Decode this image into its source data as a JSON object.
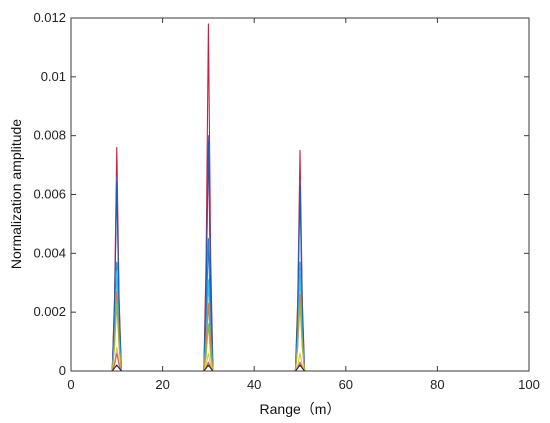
{
  "chart_data": {
    "type": "line",
    "title": "",
    "xlabel": "Range（m）",
    "ylabel": "Normalization amplitude",
    "xlim": [
      0,
      100
    ],
    "ylim": [
      0,
      0.012
    ],
    "xticks": [
      0,
      20,
      40,
      60,
      80,
      100
    ],
    "yticks": [
      0,
      0.002,
      0.004,
      0.006,
      0.008,
      0.01,
      0.012
    ],
    "grid": false,
    "legend": "none",
    "x": [
      0,
      8.5,
      9.0,
      9.5,
      10.0,
      10.5,
      11.0,
      11.5,
      28.5,
      29.0,
      29.5,
      30.0,
      30.5,
      31.0,
      31.5,
      48.5,
      49.0,
      49.5,
      50.0,
      50.5,
      51.0,
      51.5,
      100
    ],
    "series": [
      {
        "color": "#c7203f",
        "values": [
          0,
          0,
          0,
          0.0025,
          0.0076,
          0.0025,
          0,
          0,
          0,
          0,
          0.0038,
          0.0118,
          0.0038,
          0,
          0,
          0,
          0,
          0.0024,
          0.0075,
          0.0024,
          0,
          0,
          0
        ]
      },
      {
        "color": "#7a5aa8",
        "values": [
          0,
          0,
          0,
          0.0022,
          0.0066,
          0.0022,
          0,
          0,
          0,
          0,
          0.0027,
          0.008,
          0.0027,
          0,
          0,
          0,
          0,
          0.0021,
          0.0065,
          0.0021,
          0,
          0,
          0
        ]
      },
      {
        "color": "#1a5fb4",
        "values": [
          0,
          0,
          0,
          0.0021,
          0.0064,
          0.0021,
          0,
          0,
          0,
          0,
          0.0026,
          0.0078,
          0.0026,
          0,
          0,
          0,
          0,
          0.002,
          0.0063,
          0.002,
          0,
          0,
          0
        ]
      },
      {
        "color": "#2b7fc4",
        "values": [
          0,
          0,
          0,
          0.0012,
          0.0037,
          0.0012,
          0,
          0,
          0,
          0,
          0.0015,
          0.0045,
          0.0015,
          0,
          0,
          0,
          0,
          0.0012,
          0.0037,
          0.0012,
          0,
          0,
          0
        ]
      },
      {
        "color": "#3cc0e8",
        "values": [
          0,
          0,
          0,
          0.0011,
          0.0034,
          0.0011,
          0,
          0,
          0,
          0,
          0.001,
          0.0031,
          0.001,
          0,
          0,
          0,
          0,
          0.0011,
          0.0034,
          0.0011,
          0,
          0,
          0
        ]
      },
      {
        "color": "#e0802a",
        "values": [
          0,
          0,
          0,
          0.0009,
          0.0027,
          0.0009,
          0,
          0,
          0,
          0,
          0.0008,
          0.0023,
          0.0008,
          0,
          0,
          0,
          0,
          0.0009,
          0.0026,
          0.0009,
          0,
          0,
          0
        ]
      },
      {
        "color": "#9ab83a",
        "values": [
          0,
          0,
          0,
          0.0008,
          0.0023,
          0.0008,
          0,
          0,
          0,
          0,
          0.0005,
          0.0016,
          0.0005,
          0,
          0,
          0,
          0,
          0.0008,
          0.0023,
          0.0008,
          0,
          0,
          0
        ]
      },
      {
        "color": "#e8c23a",
        "values": [
          0,
          0,
          0,
          0.0003,
          0.0008,
          0.0003,
          0,
          0,
          0,
          0,
          0.0002,
          0.0006,
          0.0002,
          0,
          0,
          0,
          0,
          0.0002,
          0.0006,
          0.0002,
          0,
          0,
          0
        ]
      },
      {
        "color": "#d45a7a",
        "values": [
          0,
          0,
          0,
          0.0002,
          0.0006,
          0.0002,
          0,
          0,
          0,
          0,
          0.0001,
          0.0003,
          0.0001,
          0,
          0,
          0,
          0,
          0.0001,
          0.0003,
          0.0001,
          0,
          0,
          0
        ]
      },
      {
        "color": "#222222",
        "values": [
          0,
          0,
          0,
          0.0001,
          0.0002,
          0.0001,
          0,
          0,
          0,
          0,
          0.0001,
          0.0002,
          0.0001,
          0,
          0,
          0,
          0,
          0.0001,
          0.0002,
          0.0001,
          0,
          0,
          0
        ]
      },
      {
        "color": "#cf5fd0",
        "values": [
          0,
          0,
          0,
          0,
          0,
          0,
          0,
          0,
          0,
          0,
          0,
          0,
          0,
          0,
          0,
          0,
          0,
          0,
          0,
          0,
          0,
          0,
          0
        ]
      }
    ]
  }
}
